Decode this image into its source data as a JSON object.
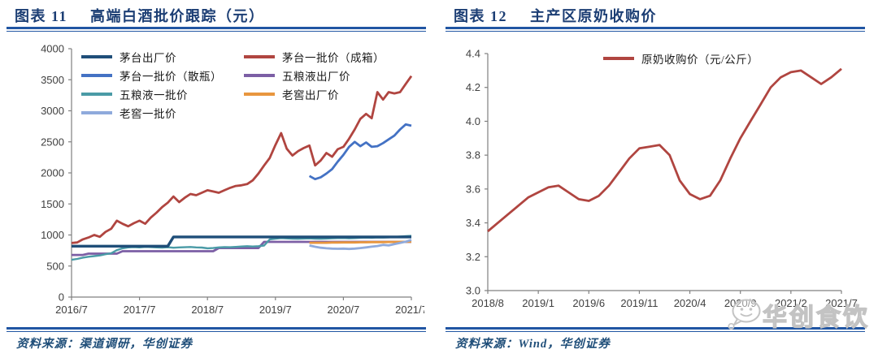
{
  "left_panel": {
    "title_prefix": "图表  11",
    "title": "高端白酒批价跟踪（元）",
    "source": "资料来源：渠道调研，华创证券"
  },
  "right_panel": {
    "title_prefix": "图表  12",
    "title": "主产区原奶收购价",
    "source": "资料来源：Wind，华创证券",
    "watermark_text": "华创食饮",
    "watermark_icon": "wechat-bubble-icon"
  },
  "colors": {
    "title_navy": "#1c3e74",
    "rule_blue": "#2156a3",
    "source_blue": "#1f4e79",
    "axis_gray": "#808080",
    "tick_label_gray": "#404040",
    "watermark_gray": "#c3c3c3"
  },
  "chart_data": [
    {
      "type": "line",
      "title": "高端白酒批价跟踪（元）",
      "x_start": "2016/7",
      "x_end": "2021/7",
      "x_cadence": "monthly",
      "x_tick_labels": [
        "2016/7",
        "2017/7",
        "2018/7",
        "2019/7",
        "2020/7",
        "2021/7"
      ],
      "x_tick_indices": [
        0,
        12,
        24,
        36,
        48,
        60
      ],
      "ylim": [
        0,
        4000
      ],
      "y_tick_labels": [
        "0",
        "500",
        "1000",
        "1500",
        "2000",
        "2500",
        "3000",
        "3500",
        "4000"
      ],
      "grid": false,
      "legend_position": "top-left-two-columns",
      "legend_columns": [
        [
          0,
          2,
          4,
          6
        ],
        [
          1,
          3,
          5
        ]
      ],
      "series": [
        {
          "name": "茅台出厂价",
          "color": "#1f4e79",
          "width": 3.4,
          "values": [
            819,
            819,
            819,
            819,
            819,
            819,
            819,
            819,
            819,
            819,
            819,
            819,
            819,
            819,
            819,
            819,
            819,
            819,
            969,
            969,
            969,
            969,
            969,
            969,
            969,
            969,
            969,
            969,
            969,
            969,
            969,
            969,
            969,
            969,
            969,
            969,
            969,
            969,
            969,
            969,
            969,
            969,
            969,
            969,
            969,
            969,
            969,
            969,
            969,
            969,
            969,
            969,
            969,
            969,
            969,
            969,
            969,
            969,
            969,
            969,
            969
          ]
        },
        {
          "name": "茅台一批价（成箱）",
          "color": "#b04540",
          "width": 2.8,
          "values": [
            870,
            880,
            930,
            960,
            1000,
            970,
            1050,
            1100,
            1230,
            1180,
            1140,
            1190,
            1230,
            1180,
            1280,
            1360,
            1450,
            1520,
            1620,
            1530,
            1600,
            1660,
            1640,
            1680,
            1720,
            1700,
            1680,
            1720,
            1760,
            1790,
            1800,
            1820,
            1880,
            1990,
            2120,
            2240,
            2450,
            2640,
            2390,
            2280,
            2350,
            2400,
            2440,
            2120,
            2200,
            2320,
            2260,
            2380,
            2420,
            2550,
            2700,
            2870,
            2950,
            2880,
            3300,
            3180,
            3300,
            3280,
            3300,
            3430,
            3560
          ]
        },
        {
          "name": "茅台一批价（散瓶）",
          "color": "#4472c4",
          "width": 2.8,
          "values": [
            null,
            null,
            null,
            null,
            null,
            null,
            null,
            null,
            null,
            null,
            null,
            null,
            null,
            null,
            null,
            null,
            null,
            null,
            null,
            null,
            null,
            null,
            null,
            null,
            null,
            null,
            null,
            null,
            null,
            null,
            null,
            null,
            null,
            null,
            null,
            null,
            null,
            null,
            null,
            null,
            null,
            null,
            1950,
            1900,
            1930,
            1990,
            2060,
            2180,
            2290,
            2420,
            2500,
            2430,
            2490,
            2420,
            2430,
            2480,
            2540,
            2600,
            2700,
            2780,
            2760
          ]
        },
        {
          "name": "五粮液出厂价",
          "color": "#7c5fa5",
          "width": 2.8,
          "values": [
            679,
            679,
            679,
            699,
            699,
            699,
            699,
            699,
            699,
            739,
            739,
            739,
            739,
            739,
            739,
            739,
            739,
            739,
            739,
            739,
            739,
            739,
            739,
            739,
            739,
            739,
            789,
            789,
            789,
            789,
            789,
            789,
            789,
            789,
            889,
            889,
            889,
            889,
            889,
            889,
            889,
            889,
            889,
            889,
            889,
            889,
            889,
            889,
            889,
            889,
            889,
            889,
            889,
            889,
            889,
            889,
            889,
            889,
            889,
            889,
            889
          ]
        },
        {
          "name": "五粮液一批价",
          "color": "#4a9ba6",
          "width": 2.4,
          "values": [
            600,
            615,
            635,
            650,
            660,
            670,
            690,
            705,
            755,
            785,
            800,
            805,
            800,
            808,
            805,
            800,
            798,
            802,
            795,
            800,
            803,
            806,
            800,
            797,
            785,
            790,
            800,
            805,
            803,
            808,
            815,
            820,
            815,
            820,
            830,
            930,
            940,
            950,
            945,
            940,
            938,
            942,
            945,
            940,
            938,
            942,
            948,
            950,
            952,
            948,
            950,
            955,
            958,
            955,
            960,
            958,
            962,
            968,
            975,
            980,
            985
          ]
        },
        {
          "name": "老窖出厂价",
          "color": "#e8963e",
          "width": 2.8,
          "values": [
            null,
            null,
            null,
            null,
            null,
            null,
            null,
            null,
            null,
            null,
            null,
            null,
            null,
            null,
            null,
            null,
            null,
            null,
            null,
            null,
            null,
            null,
            null,
            null,
            null,
            null,
            null,
            null,
            null,
            null,
            null,
            null,
            null,
            null,
            null,
            null,
            null,
            null,
            null,
            null,
            null,
            null,
            875,
            875,
            875,
            875,
            878,
            878,
            880,
            880,
            880,
            882,
            882,
            885,
            885,
            885,
            888,
            888,
            890,
            890,
            893
          ]
        },
        {
          "name": "老窖一批价",
          "color": "#8faadc",
          "width": 2.8,
          "values": [
            null,
            null,
            null,
            null,
            null,
            null,
            null,
            null,
            null,
            null,
            null,
            null,
            null,
            null,
            null,
            null,
            null,
            null,
            null,
            null,
            null,
            null,
            null,
            null,
            null,
            null,
            null,
            null,
            null,
            null,
            null,
            null,
            null,
            null,
            null,
            null,
            null,
            null,
            null,
            null,
            null,
            null,
            830,
            810,
            795,
            785,
            780,
            778,
            780,
            775,
            780,
            790,
            800,
            812,
            822,
            840,
            832,
            852,
            872,
            892,
            920
          ]
        }
      ]
    },
    {
      "type": "line",
      "title": "主产区原奶收购价",
      "x_start": "2018/8",
      "x_end": "2021/7",
      "x_cadence": "monthly",
      "x_tick_labels": [
        "2018/8",
        "2019/1",
        "2019/6",
        "2019/11",
        "2020/4",
        "2020/9",
        "2021/2",
        "2021/7"
      ],
      "x_tick_indices": [
        0,
        5,
        10,
        15,
        20,
        25,
        30,
        35
      ],
      "ylim": [
        3.0,
        4.4
      ],
      "y_tick_labels": [
        "3.0",
        "3.2",
        "3.4",
        "3.6",
        "3.8",
        "4.0",
        "4.2",
        "4.4"
      ],
      "grid": false,
      "legend_position": "top-center",
      "series": [
        {
          "name": "原奶收购价（元/公斤）",
          "color": "#b04540",
          "width": 2.8,
          "values": [
            3.35,
            3.4,
            3.45,
            3.5,
            3.55,
            3.58,
            3.61,
            3.62,
            3.58,
            3.54,
            3.53,
            3.56,
            3.62,
            3.7,
            3.78,
            3.84,
            3.85,
            3.86,
            3.8,
            3.65,
            3.57,
            3.54,
            3.56,
            3.65,
            3.78,
            3.9,
            4.0,
            4.1,
            4.2,
            4.26,
            4.29,
            4.3,
            4.26,
            4.22,
            4.26,
            4.31
          ]
        }
      ]
    }
  ]
}
